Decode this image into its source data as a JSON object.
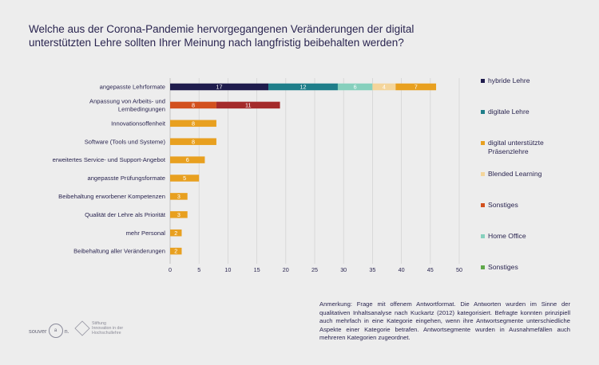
{
  "title": {
    "line1": "Welche aus der Corona-Pandemie hervorgegangenen Veränderungen der digital",
    "line2": "unterstützten Lehre sollten Ihrer Meinung nach langfristig beibehalten werden?"
  },
  "chart_data": {
    "type": "bar",
    "orientation": "horizontal",
    "stacked": true,
    "title": "Welche aus der Corona-Pandemie hervorgegangenen Veränderungen der digital unterstützten Lehre sollten Ihrer Meinung nach langfristig beibehalten werden?",
    "xlim": [
      0,
      50
    ],
    "xticks": [
      0,
      5,
      10,
      15,
      20,
      25,
      30,
      35,
      40,
      45,
      50
    ],
    "xlabel": "",
    "ylabel": "",
    "grid": "vertical",
    "legend_position": "right",
    "categories": [
      "angepasste Lehrformate",
      "Anpassung von Arbeits- und Lernbedingungen",
      "Innovationsoffenheit",
      "Software (Tools und Systeme)",
      "erweitertes Service- und Support-Angebot",
      "angepasste Prüfungsformate",
      "Beibehaltung erworbener Kompetenzen",
      "Qualität der Lehre als Priorität",
      "mehr Personal",
      "Beibehaltung aller Veränderungen"
    ],
    "category_lines": [
      [
        "angepasste Lehrformate"
      ],
      [
        "Anpassung von Arbeits- und",
        "Lernbedingungen"
      ],
      [
        "Innovationsoffenheit"
      ],
      [
        "Software (Tools und Systeme)"
      ],
      [
        "erweitertes Service- und Support-Angebot"
      ],
      [
        "angepasste Prüfungsformate"
      ],
      [
        "Beibehaltung erworbener Kompetenzen"
      ],
      [
        "Qualität der Lehre als Priorität"
      ],
      [
        "mehr Personal"
      ],
      [
        "Beibehaltung aller Veränderungen"
      ]
    ],
    "bars": [
      [
        {
          "series": "hybride Lehre",
          "value": 17,
          "color": "#1f1c4d"
        },
        {
          "series": "digitale Lehre",
          "value": 12,
          "color": "#1f7e8a"
        },
        {
          "series": "Home Office",
          "value": 6,
          "color": "#86d0bd"
        },
        {
          "series": "Blended Learning",
          "value": 4,
          "color": "#f4d59b"
        },
        {
          "series": "digital unterstützte Präsenzlehre",
          "value": 7,
          "color": "#e8a020"
        }
      ],
      [
        {
          "series": "Sonstiges",
          "value": 8,
          "color": "#d2501e"
        },
        {
          "series": "Anpassung",
          "value": 11,
          "color": "#a42a2a"
        }
      ],
      [
        {
          "series": "total",
          "value": 8,
          "color": "#e8a020"
        }
      ],
      [
        {
          "series": "total",
          "value": 8,
          "color": "#e8a020"
        }
      ],
      [
        {
          "series": "total",
          "value": 6,
          "color": "#e8a020"
        }
      ],
      [
        {
          "series": "total",
          "value": 5,
          "color": "#e8a020"
        }
      ],
      [
        {
          "series": "total",
          "value": 3,
          "color": "#e8a020"
        }
      ],
      [
        {
          "series": "total",
          "value": 3,
          "color": "#e8a020"
        }
      ],
      [
        {
          "series": "total",
          "value": 2,
          "color": "#e8a020"
        }
      ],
      [
        {
          "series": "total",
          "value": 2,
          "color": "#e8a020"
        }
      ]
    ]
  },
  "legend": [
    {
      "label": "hybride Lehre",
      "color": "#1f1c4d"
    },
    {
      "label": "digitale Lehre",
      "color": "#1f7e8a"
    },
    {
      "label": "digital unterstützte Präsenzlehre",
      "color": "#e8a020"
    },
    {
      "label": "Blended Learning",
      "color": "#f4d59b"
    },
    {
      "label": "Sonstiges",
      "color": "#d2501e"
    },
    {
      "label": "Home Office",
      "color": "#86d0bd"
    },
    {
      "label": "Sonstiges",
      "color": "#5fa84a"
    }
  ],
  "note": "Anmerkung: Frage mit offenem Antwortformat. Die Antworten wurden im Sinne der qualitativen Inhaltsanalyse nach Kuckartz (2012) kategorisiert. Befragte konnten prinzipiell auch mehrfach in eine Kategorie eingehen, wenn ihre Antwortsegmente unterschiedliche Aspekte einer Kategorie betrafen. Antwortsegmente wurden in Ausnahmefällen auch mehreren Kategorien zugeordnet.",
  "logos": {
    "souver_text": "souver",
    "souver_mark": "a",
    "souver_tail": "n.",
    "stiftung_lines": [
      "Stiftung",
      "Innovation in der",
      "Hochschullehre"
    ]
  }
}
